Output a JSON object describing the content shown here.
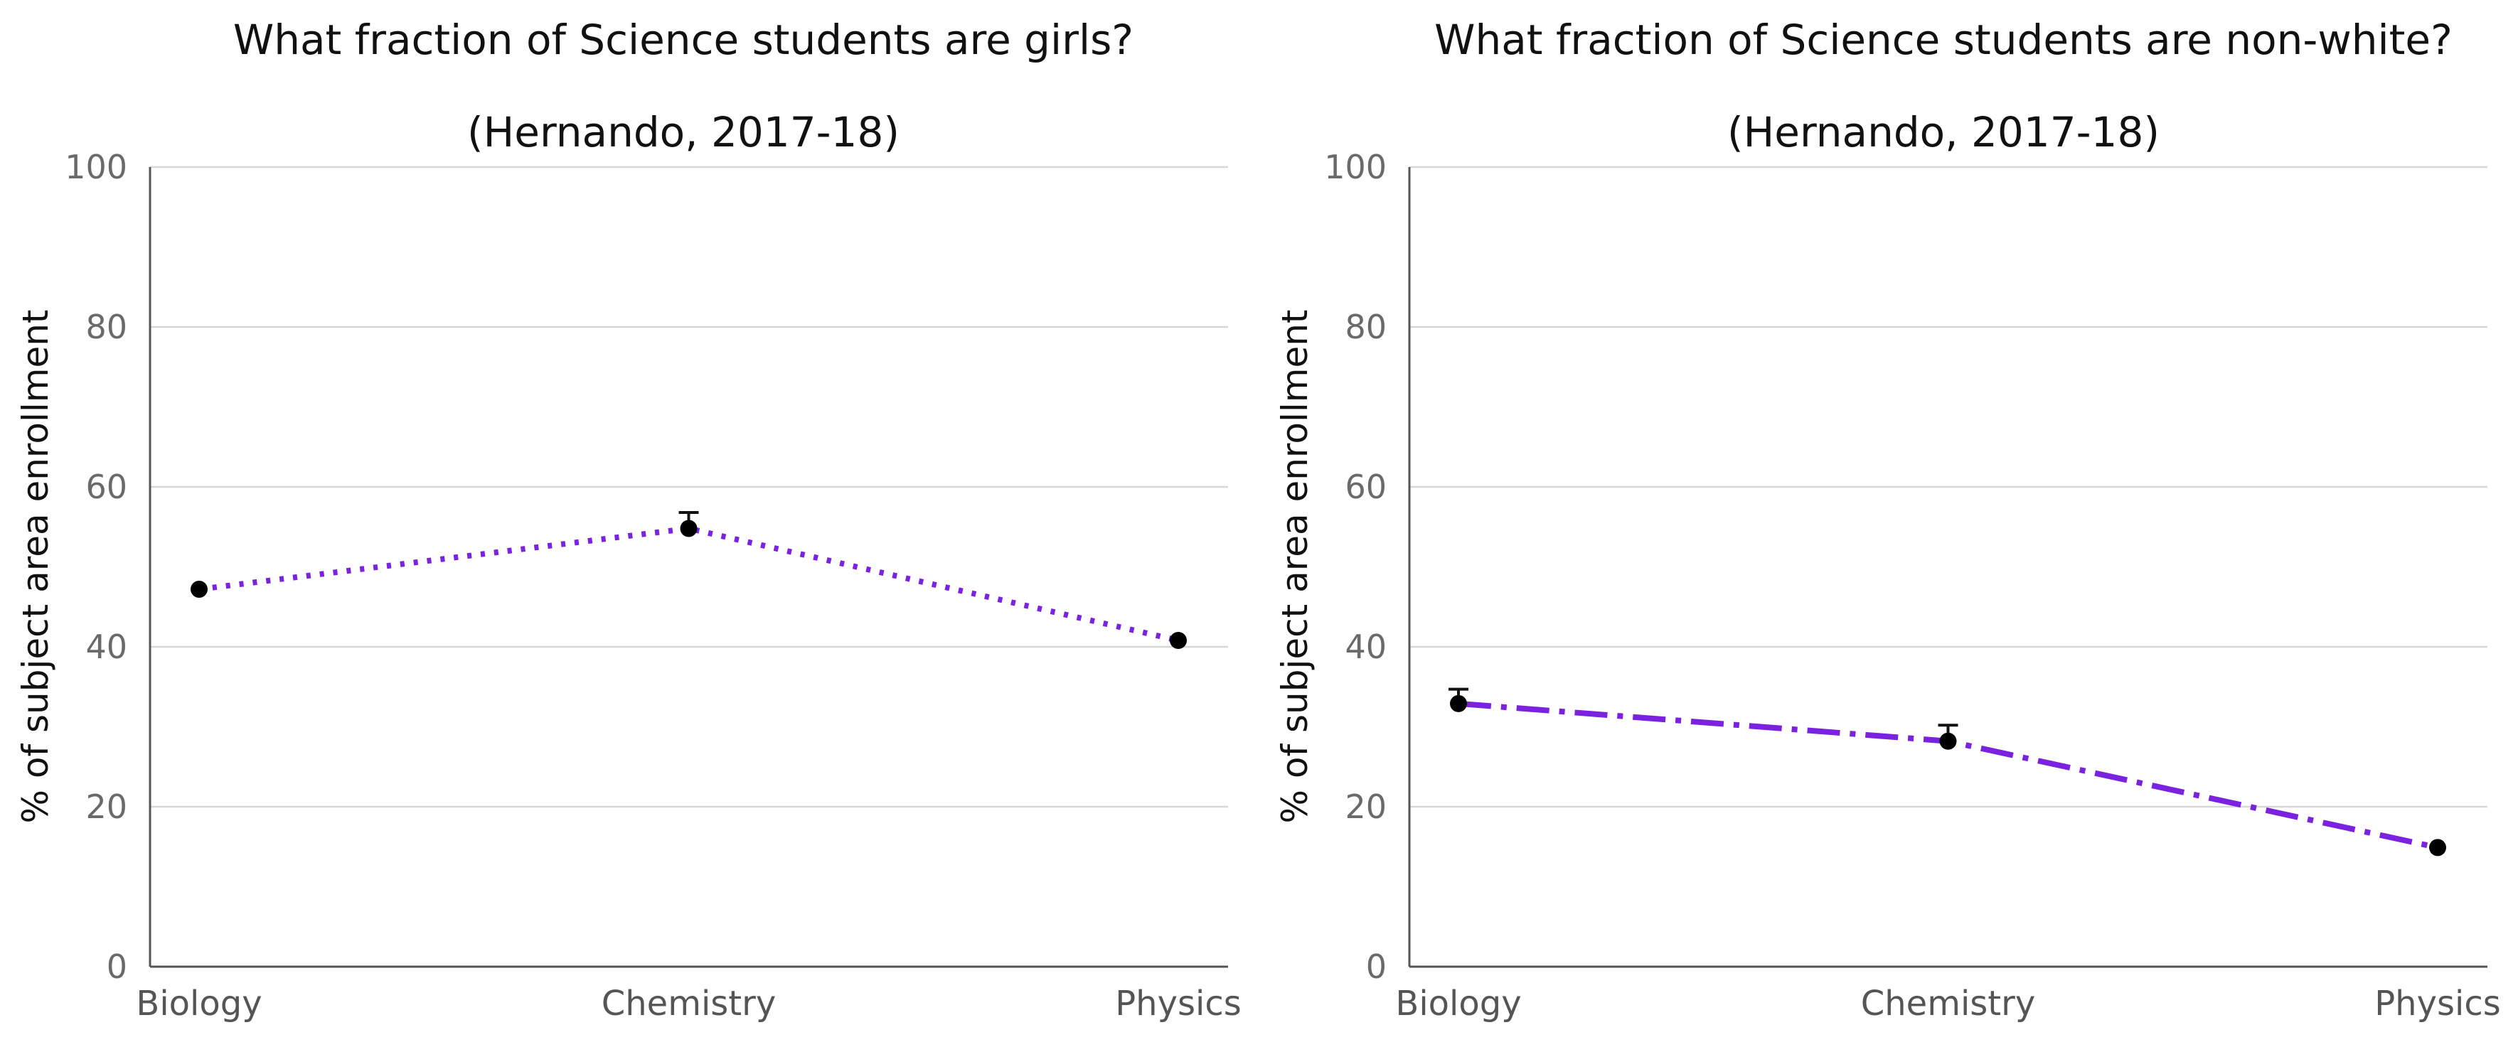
{
  "charts": [
    {
      "title_line1": "What fraction of Science students are girls?",
      "title_line2": "(Hernando, 2017-18)",
      "ylabel": "% of subject area enrollment"
    },
    {
      "title_line1": "What fraction of Science students are non-white?",
      "title_line2": "(Hernando, 2017-18)",
      "ylabel": "% of subject area enrollment"
    }
  ],
  "chart_data": [
    {
      "type": "line",
      "title": "What fraction of Science students are girls? (Hernando, 2017-18)",
      "xlabel": "",
      "ylabel": "% of subject area enrollment",
      "categories": [
        "Biology",
        "Chemistry",
        "Physics"
      ],
      "series": [
        {
          "values": [
            47.2,
            54.8,
            40.8
          ],
          "error_upper": [
            47.2,
            56.8,
            40.8
          ],
          "line_style": "dotted",
          "color": "#7a22e0"
        }
      ],
      "ylim": [
        0,
        100
      ],
      "yticks": [
        0,
        20,
        40,
        60,
        80,
        100
      ],
      "grid": true,
      "marker_color": "#000000"
    },
    {
      "type": "line",
      "title": "What fraction of Science students are non-white? (Hernando, 2017-18)",
      "xlabel": "",
      "ylabel": "% of subject area enrollment",
      "categories": [
        "Biology",
        "Chemistry",
        "Physics"
      ],
      "series": [
        {
          "values": [
            32.9,
            28.2,
            14.9
          ],
          "error_upper": [
            34.7,
            30.2,
            14.9
          ],
          "line_style": "dashdot",
          "color": "#7a22e0"
        }
      ],
      "ylim": [
        0,
        100
      ],
      "yticks": [
        0,
        20,
        40,
        60,
        80,
        100
      ],
      "grid": true,
      "marker_color": "#000000"
    }
  ]
}
